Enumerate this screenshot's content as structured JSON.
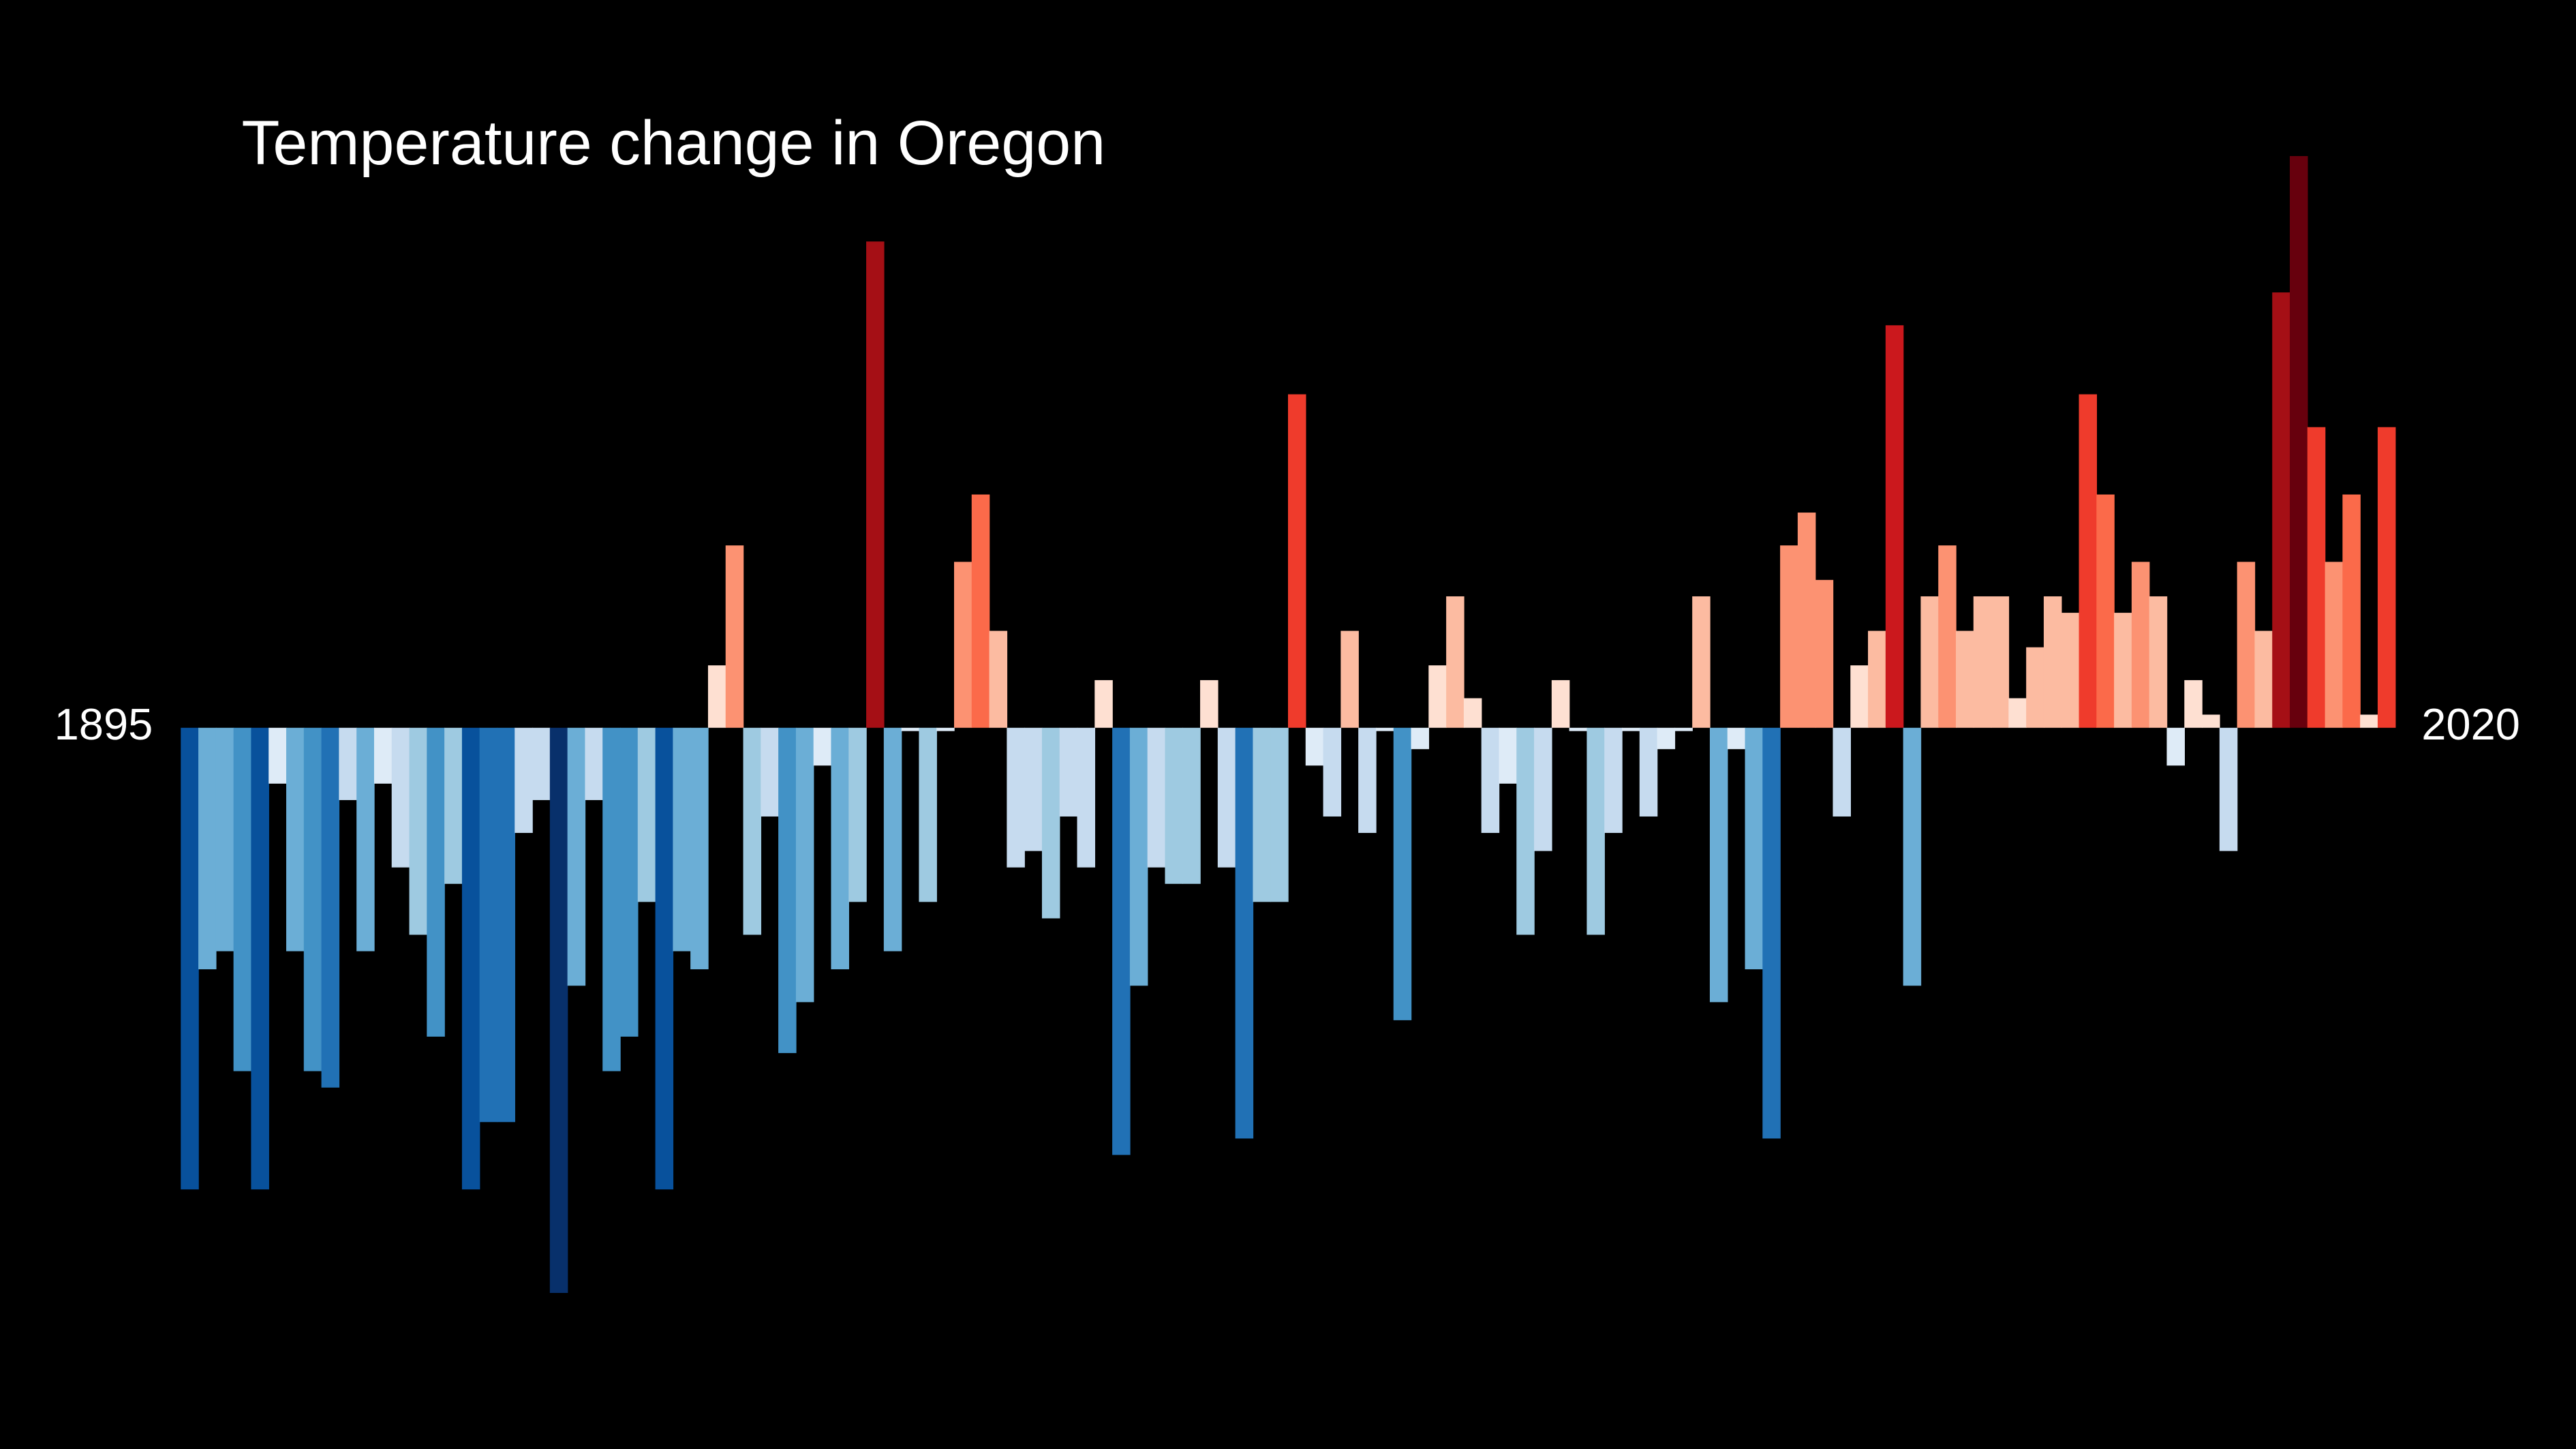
{
  "chart_data": {
    "type": "bar",
    "title": "Temperature change in Oregon",
    "x": [
      1895,
      1896,
      1897,
      1898,
      1899,
      1900,
      1901,
      1902,
      1903,
      1904,
      1905,
      1906,
      1907,
      1908,
      1909,
      1910,
      1911,
      1912,
      1913,
      1914,
      1915,
      1916,
      1917,
      1918,
      1919,
      1920,
      1921,
      1922,
      1923,
      1924,
      1925,
      1926,
      1927,
      1928,
      1929,
      1930,
      1931,
      1932,
      1933,
      1934,
      1935,
      1936,
      1937,
      1938,
      1939,
      1940,
      1941,
      1942,
      1943,
      1944,
      1945,
      1946,
      1947,
      1948,
      1949,
      1950,
      1951,
      1952,
      1953,
      1954,
      1955,
      1956,
      1957,
      1958,
      1959,
      1960,
      1961,
      1962,
      1963,
      1964,
      1965,
      1966,
      1967,
      1968,
      1969,
      1970,
      1971,
      1972,
      1973,
      1974,
      1975,
      1976,
      1977,
      1978,
      1979,
      1980,
      1981,
      1982,
      1983,
      1984,
      1985,
      1986,
      1987,
      1988,
      1989,
      1990,
      1991,
      1992,
      1993,
      1994,
      1995,
      1996,
      1997,
      1998,
      1999,
      2000,
      2001,
      2002,
      2003,
      2004,
      2005,
      2006,
      2007,
      2008,
      2009,
      2010,
      2011,
      2012,
      2013,
      2014,
      2015,
      2016,
      2017,
      2018,
      2019,
      2020
    ],
    "values": [
      -2.81,
      -1.47,
      -1.36,
      -2.09,
      -2.81,
      -0.34,
      -1.36,
      -2.09,
      -2.19,
      -0.44,
      -1.36,
      -0.34,
      -0.85,
      -1.26,
      -1.88,
      -0.95,
      -2.81,
      -2.4,
      -2.4,
      -0.64,
      -0.44,
      -3.44,
      -1.57,
      -0.44,
      -2.09,
      -1.88,
      -1.06,
      -2.81,
      -1.36,
      -1.47,
      0.38,
      1.11,
      -1.26,
      -0.54,
      -1.98,
      -1.67,
      -0.23,
      -1.47,
      -1.06,
      2.96,
      -1.36,
      -0.02,
      -1.06,
      -0.02,
      1.01,
      1.42,
      0.59,
      -0.85,
      -0.75,
      -1.16,
      -0.54,
      -0.85,
      0.29,
      -2.6,
      -1.57,
      -0.85,
      -0.95,
      -0.95,
      0.29,
      -0.85,
      -2.5,
      -1.06,
      -1.06,
      2.03,
      -0.23,
      -0.54,
      0.59,
      -0.64,
      -0.02,
      -1.78,
      -0.13,
      0.38,
      0.8,
      0.18,
      -0.64,
      -0.34,
      -1.26,
      -0.75,
      0.29,
      -0.02,
      -1.26,
      -0.64,
      -0.02,
      -0.54,
      -0.13,
      -0.02,
      0.8,
      -1.67,
      -0.13,
      -1.47,
      -2.5,
      1.11,
      1.31,
      0.9,
      -0.54,
      0.38,
      0.59,
      2.45,
      -1.57,
      0.8,
      1.11,
      0.59,
      0.8,
      0.8,
      0.18,
      0.49,
      0.8,
      0.7,
      2.03,
      1.42,
      0.7,
      1.01,
      0.8,
      -0.23,
      0.29,
      0.08,
      -0.75,
      1.01,
      0.59,
      2.65,
      3.48,
      1.83,
      1.01,
      1.42,
      0.08,
      1.83
    ],
    "xlim": [
      1895,
      2020
    ],
    "ylim": [
      -3.5,
      3.5
    ],
    "cmap": [
      "#08306b",
      "#08519c",
      "#2171b5",
      "#4292c6",
      "#6baed6",
      "#9ecae1",
      "#c6dbef",
      "#deebf7",
      "#fee0d2",
      "#fcbba1",
      "#fc9272",
      "#fb6a4a",
      "#ef3b2c",
      "#cb181d",
      "#a50f15",
      "#67000d"
    ],
    "clim": [
      -3.5,
      3.5
    ]
  }
}
